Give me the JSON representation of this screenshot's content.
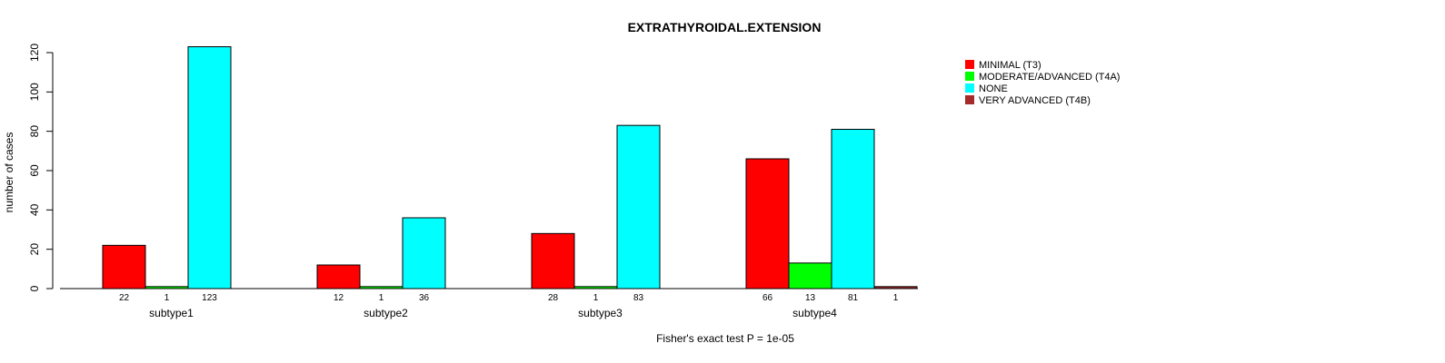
{
  "chart_data": {
    "type": "bar",
    "title": "EXTRATHYROIDAL.EXTENSION",
    "ylabel": "number of cases",
    "xlabel": "",
    "ylim": [
      0,
      125
    ],
    "yticks": [
      0,
      20,
      40,
      60,
      80,
      100,
      120
    ],
    "categories": [
      "MINIMAL (T3)",
      "MODERATE/ADVANCED (T4A)",
      "NONE",
      "VERY ADVANCED (T4B)"
    ],
    "legend": [
      {
        "label": "MINIMAL (T3)",
        "color": "#ff0000"
      },
      {
        "label": "MODERATE/ADVANCED (T4A)",
        "color": "#00ff00"
      },
      {
        "label": "NONE",
        "color": "#00ffff"
      },
      {
        "label": "VERY ADVANCED (T4B)",
        "color": "#a52a2a"
      }
    ],
    "groups": [
      {
        "name": "subtype1",
        "values": [
          22,
          1,
          123,
          0
        ],
        "labels": [
          "22",
          "1",
          "123",
          ""
        ]
      },
      {
        "name": "subtype2",
        "values": [
          12,
          1,
          36,
          0
        ],
        "labels": [
          "12",
          "1",
          "36",
          ""
        ]
      },
      {
        "name": "subtype3",
        "values": [
          28,
          1,
          83,
          0
        ],
        "labels": [
          "28",
          "1",
          "83",
          ""
        ]
      },
      {
        "name": "subtype4",
        "values": [
          66,
          13,
          81,
          1
        ],
        "labels": [
          "66",
          "13",
          "81",
          "1"
        ]
      }
    ],
    "footnote": "Fisher's exact test P = 1e-05"
  }
}
